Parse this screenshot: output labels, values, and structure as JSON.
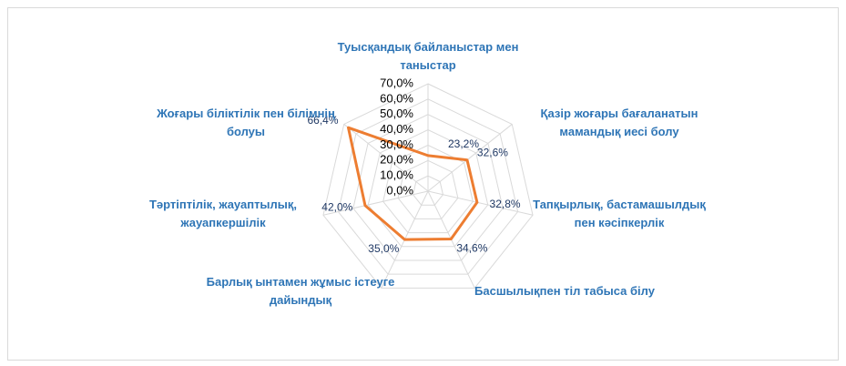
{
  "chart_data": {
    "type": "radar",
    "categories": [
      "Туысқандық байланыстар мен таныстар",
      "Қазір жоғары бағаланатын мамандық иесі болу",
      "Тапқырлық, бастамашылдық пен кәсіпкерлік",
      "Басшылықпен тіл табыса білу",
      "Барлық ынтамен жұмыс істеуге дайындық",
      "Тәртіптілік, жауаптылық, жауапкершілік",
      "Жоғары біліктілік пен білімнің болуы"
    ],
    "values": [
      23.2,
      32.6,
      32.8,
      34.6,
      35.0,
      42.0,
      66.4
    ],
    "value_labels": [
      "23,2%",
      "32,6%",
      "32,8%",
      "34,6%",
      "35,0%",
      "42,0%",
      "66,4%"
    ],
    "color": "#ed7d31",
    "ylim": [
      0,
      70
    ],
    "yticks": [
      {
        "value": 0,
        "label": "0,0%"
      },
      {
        "value": 10,
        "label": "10,0%"
      },
      {
        "value": 20,
        "label": "20,0%"
      },
      {
        "value": 30,
        "label": "30,0%"
      },
      {
        "value": 40,
        "label": "40,0%"
      },
      {
        "value": 50,
        "label": "50,0%"
      },
      {
        "value": 60,
        "label": "60,0%"
      },
      {
        "value": 70,
        "label": "70,0%"
      }
    ],
    "grid": true
  }
}
